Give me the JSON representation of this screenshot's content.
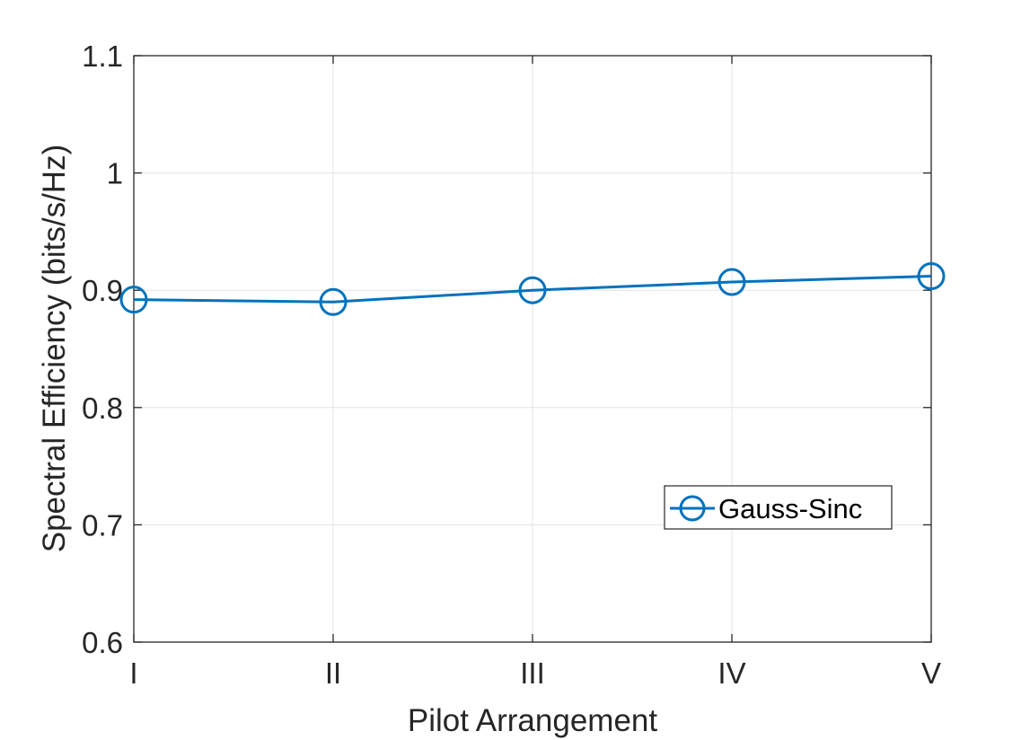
{
  "chart_data": {
    "type": "line",
    "title": "",
    "xlabel": "Pilot Arrangement",
    "ylabel": "Spectral Efficiency (bits/s/Hz)",
    "categories": [
      "I",
      "II",
      "III",
      "IV",
      "V"
    ],
    "series": [
      {
        "name": "Gauss-Sinc",
        "values": [
          0.892,
          0.89,
          0.9,
          0.907,
          0.912
        ],
        "color": "#0072BD",
        "marker": "circle"
      }
    ],
    "ylim": [
      0.6,
      1.1
    ],
    "yticks": [
      0.6,
      0.7,
      0.8,
      0.9,
      1.0,
      1.1
    ],
    "ytick_labels": [
      "0.6",
      "0.7",
      "0.8",
      "0.9",
      "1",
      "1.1"
    ],
    "grid": true,
    "box": true,
    "legend_position": "lower-right"
  }
}
